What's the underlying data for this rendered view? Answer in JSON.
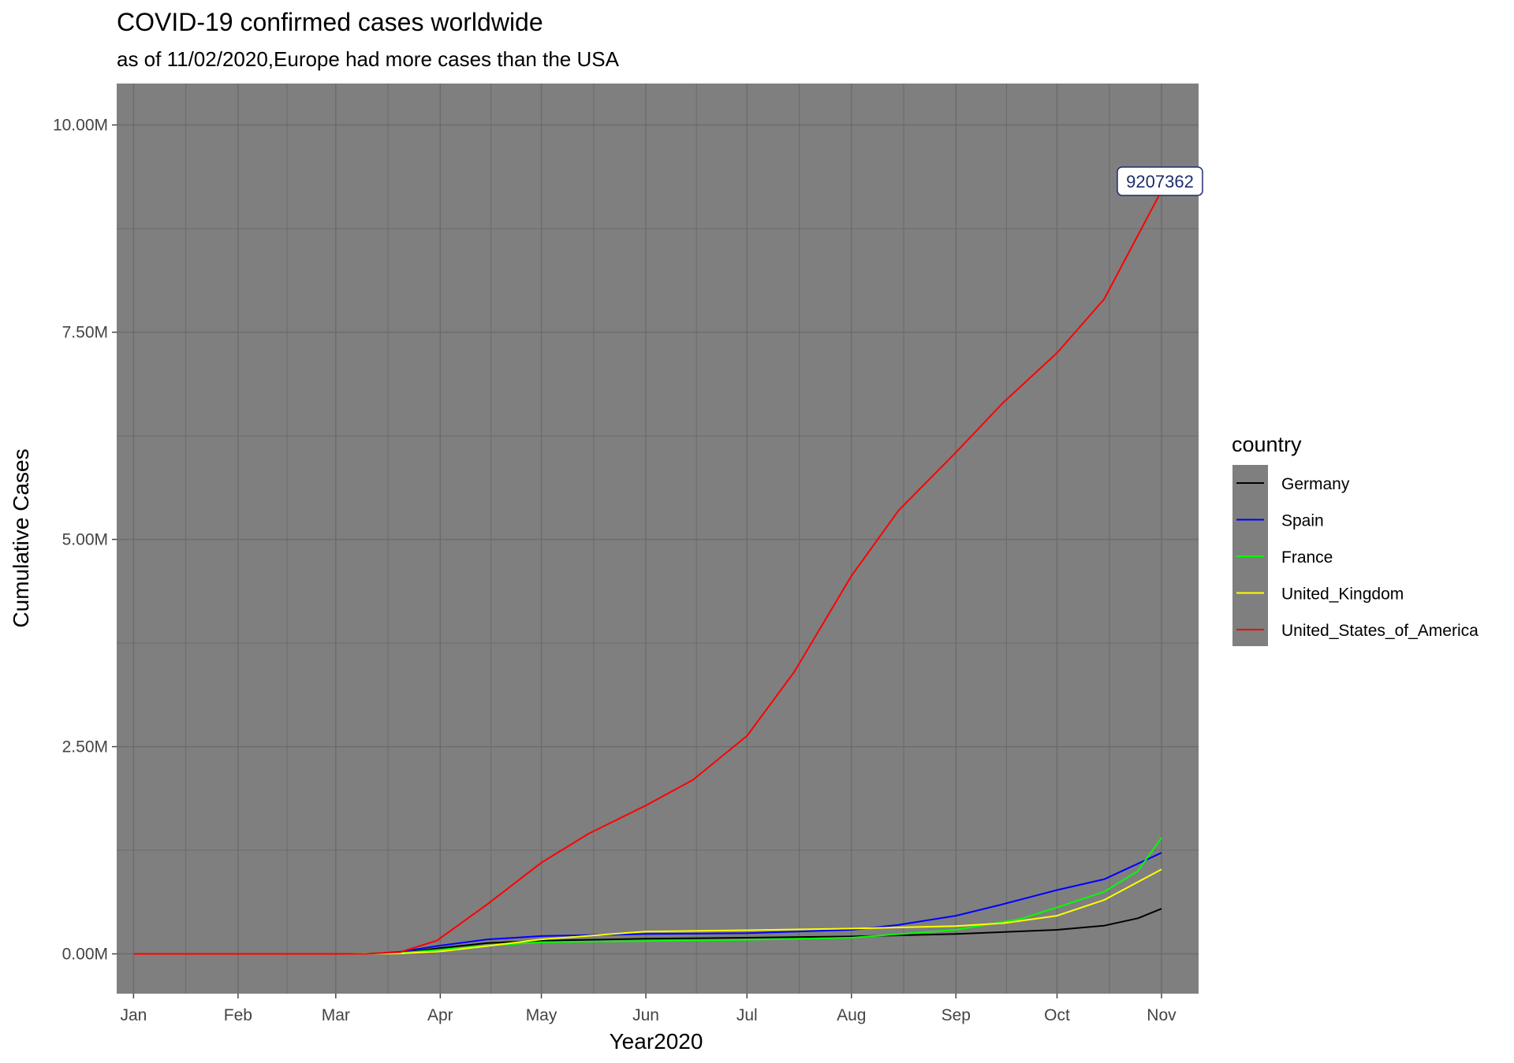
{
  "chart_data": {
    "type": "line",
    "title": "COVID-19 confirmed cases worldwide",
    "subtitle": "as of 11/02/2020,Europe had more cases than the USA",
    "xlabel": "Year2020",
    "ylabel": "Cumulative Cases",
    "x_ticks": [
      "Jan",
      "Feb",
      "Mar",
      "Apr",
      "May",
      "Jun",
      "Jul",
      "Aug",
      "Sep",
      "Oct",
      "Nov"
    ],
    "y_ticks": [
      "0.00M",
      "2.50M",
      "5.00M",
      "7.50M",
      "10.00M"
    ],
    "ylim": [
      -480000,
      10500000
    ],
    "xlim": [
      "2019-12-27",
      "2020-11-12"
    ],
    "grid": true,
    "panel_background": "#7f7f7f",
    "legend_position": "right",
    "legend_title": "country",
    "annotation": {
      "label": "9207362",
      "x": "2020-11-01",
      "y": 9207362
    },
    "series": [
      {
        "name": "Germany",
        "color": "#000000",
        "points": [
          [
            "2020-01-01",
            0
          ],
          [
            "2020-02-01",
            0
          ],
          [
            "2020-03-01",
            0
          ],
          [
            "2020-03-20",
            10000
          ],
          [
            "2020-04-01",
            70000
          ],
          [
            "2020-04-15",
            130000
          ],
          [
            "2020-05-01",
            160000
          ],
          [
            "2020-06-01",
            183000
          ],
          [
            "2020-07-01",
            195000
          ],
          [
            "2020-08-01",
            210000
          ],
          [
            "2020-09-01",
            240000
          ],
          [
            "2020-10-01",
            290000
          ],
          [
            "2020-10-15",
            340000
          ],
          [
            "2020-10-25",
            430000
          ],
          [
            "2020-11-01",
            545000
          ]
        ]
      },
      {
        "name": "Spain",
        "color": "#0000ff",
        "points": [
          [
            "2020-01-01",
            0
          ],
          [
            "2020-03-01",
            0
          ],
          [
            "2020-03-12",
            3000
          ],
          [
            "2020-03-20",
            25000
          ],
          [
            "2020-04-01",
            100000
          ],
          [
            "2020-04-15",
            175000
          ],
          [
            "2020-05-01",
            215000
          ],
          [
            "2020-06-01",
            240000
          ],
          [
            "2020-07-01",
            250000
          ],
          [
            "2020-08-01",
            290000
          ],
          [
            "2020-08-15",
            350000
          ],
          [
            "2020-09-01",
            460000
          ],
          [
            "2020-09-15",
            600000
          ],
          [
            "2020-10-01",
            770000
          ],
          [
            "2020-10-15",
            900000
          ],
          [
            "2020-11-01",
            1220000
          ]
        ]
      },
      {
        "name": "France",
        "color": "#00ff00",
        "points": [
          [
            "2020-01-01",
            0
          ],
          [
            "2020-03-01",
            0
          ],
          [
            "2020-03-20",
            10000
          ],
          [
            "2020-04-01",
            50000
          ],
          [
            "2020-04-15",
            100000
          ],
          [
            "2020-05-01",
            140000
          ],
          [
            "2020-06-01",
            155000
          ],
          [
            "2020-07-01",
            170000
          ],
          [
            "2020-08-01",
            195000
          ],
          [
            "2020-09-01",
            290000
          ],
          [
            "2020-09-20",
            420000
          ],
          [
            "2020-10-01",
            560000
          ],
          [
            "2020-10-15",
            750000
          ],
          [
            "2020-10-25",
            1000000
          ],
          [
            "2020-11-01",
            1400000
          ]
        ]
      },
      {
        "name": "United_Kingdom",
        "color": "#ffff00",
        "points": [
          [
            "2020-01-01",
            0
          ],
          [
            "2020-03-01",
            0
          ],
          [
            "2020-03-20",
            5000
          ],
          [
            "2020-04-01",
            30000
          ],
          [
            "2020-04-15",
            95000
          ],
          [
            "2020-05-01",
            175000
          ],
          [
            "2020-06-01",
            270000
          ],
          [
            "2020-07-01",
            285000
          ],
          [
            "2020-08-01",
            305000
          ],
          [
            "2020-09-01",
            335000
          ],
          [
            "2020-09-15",
            370000
          ],
          [
            "2020-10-01",
            460000
          ],
          [
            "2020-10-15",
            650000
          ],
          [
            "2020-11-01",
            1020000
          ]
        ]
      },
      {
        "name": "United_States_of_America",
        "color": "#ff0000",
        "points": [
          [
            "2020-01-01",
            0
          ],
          [
            "2020-02-01",
            0
          ],
          [
            "2020-03-01",
            0
          ],
          [
            "2020-03-10",
            1000
          ],
          [
            "2020-03-20",
            20000
          ],
          [
            "2020-03-31",
            160000
          ],
          [
            "2020-04-15",
            600000
          ],
          [
            "2020-05-01",
            1100000
          ],
          [
            "2020-05-15",
            1450000
          ],
          [
            "2020-06-01",
            1790000
          ],
          [
            "2020-06-15",
            2100000
          ],
          [
            "2020-07-01",
            2630000
          ],
          [
            "2020-07-15",
            3400000
          ],
          [
            "2020-08-01",
            4560000
          ],
          [
            "2020-08-15",
            5350000
          ],
          [
            "2020-09-01",
            6050000
          ],
          [
            "2020-09-15",
            6650000
          ],
          [
            "2020-10-01",
            7250000
          ],
          [
            "2020-10-15",
            7900000
          ],
          [
            "2020-11-01",
            9207362
          ]
        ]
      }
    ]
  }
}
